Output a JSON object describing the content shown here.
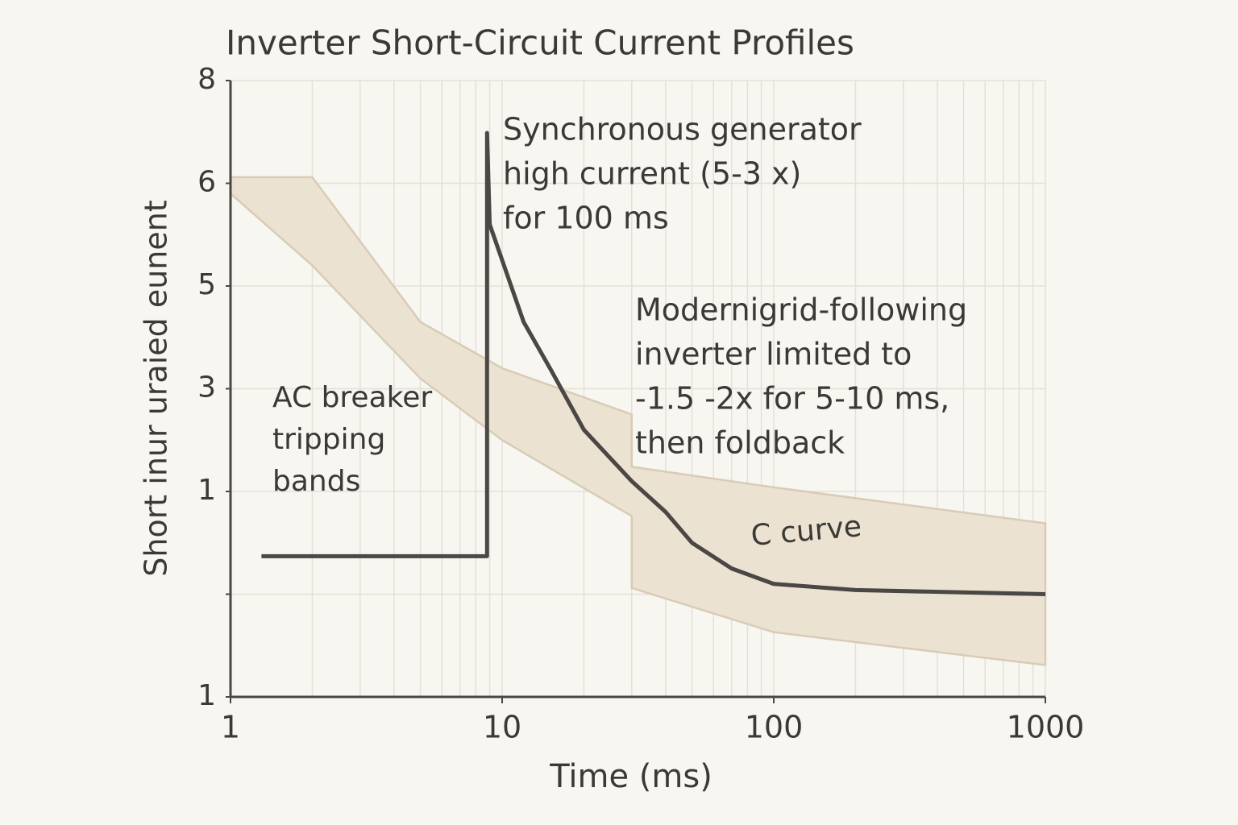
{
  "chart_data": {
    "type": "line",
    "title": "Inverter Short-Circuit Current Profiles",
    "xlabel": "Time (ms)",
    "ylabel": "Short inur uraied eunent",
    "xscale": "log",
    "xlim": [
      1,
      1000
    ],
    "xticks": [
      1,
      10,
      100,
      1000
    ],
    "xminorticks": [
      2,
      3,
      4,
      5,
      6,
      7,
      8,
      9,
      20,
      30,
      40,
      50,
      60,
      70,
      80,
      90,
      200,
      300,
      400,
      500,
      600,
      700,
      800,
      900
    ],
    "ylim": [
      0,
      6
    ],
    "yticks": [
      {
        "value": 0,
        "label": "1"
      },
      {
        "value": 1
      },
      {
        "value": 2,
        "label": "1"
      },
      {
        "value": 3,
        "label": "3"
      },
      {
        "value": 4,
        "label": "5"
      },
      {
        "value": 5,
        "label": "6"
      },
      {
        "value": 6,
        "label": "8"
      }
    ],
    "grid": true,
    "series": [
      {
        "color": "#4a4744",
        "x": [
          1.3,
          8.8,
          8.8,
          9,
          12,
          15,
          20,
          30,
          40,
          50,
          70,
          100,
          200,
          1000
        ],
        "values": [
          1.37,
          1.37,
          5.49,
          4.6,
          3.65,
          3.2,
          2.6,
          2.1,
          1.8,
          1.5,
          1.25,
          1.1,
          1.04,
          1.0
        ]
      }
    ],
    "bands": [
      {
        "color": "#ece2d1",
        "x": [
          1,
          2,
          5,
          10,
          30,
          30,
          100,
          1000
        ],
        "upper": [
          5.06,
          5.06,
          3.65,
          3.2,
          2.75,
          2.24,
          2.04,
          1.69
        ],
        "lower": [
          4.9,
          4.2,
          3.1,
          2.5,
          1.76,
          1.06,
          0.63,
          0.31
        ]
      }
    ],
    "annotations": [
      {
        "lines": [
          "Synchronous generator",
          "high current (5-3 x)",
          "for 100 ms"
        ]
      },
      {
        "lines": [
          "Modernigrid-following",
          "inverter limited to",
          "-1.5 -2x for 5-10 ms,",
          "then foldback"
        ]
      },
      {
        "lines": [
          "AC breaker",
          "tripping",
          "bands"
        ]
      },
      {
        "lines": [
          "C curve"
        ]
      }
    ]
  }
}
